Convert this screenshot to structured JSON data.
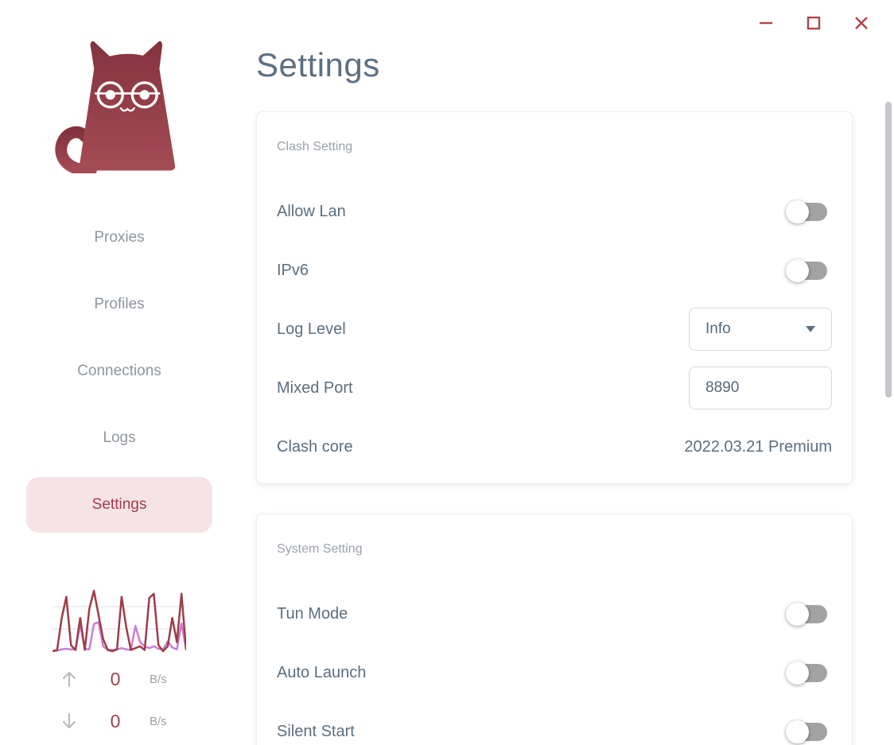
{
  "window": {
    "controls": [
      {
        "name": "minimize",
        "icon": "minimize-icon"
      },
      {
        "name": "maximize",
        "icon": "maximize-icon"
      },
      {
        "name": "close",
        "icon": "close-icon"
      }
    ]
  },
  "colors": {
    "accent_red": "#a23b4e",
    "active_pill_bg": "#f5e3e6",
    "title_slate": "#5e6f80",
    "muted_gray": "#9ba1a9",
    "toggle_off_track": "#a3a3a3",
    "scrollbar": "#c3c6ca"
  },
  "sidebar": {
    "logo": "clash-cat-logo",
    "items": [
      {
        "label": "Proxies",
        "state": ""
      },
      {
        "label": "Profiles",
        "state": ""
      },
      {
        "label": "Connections",
        "state": ""
      },
      {
        "label": "Logs",
        "state": ""
      },
      {
        "label": "Settings",
        "state": "active"
      }
    ],
    "traffic": {
      "upload": {
        "icon": "arrow-up",
        "value": "0",
        "unit": "B/s"
      },
      "download": {
        "icon": "arrow-down",
        "value": "0",
        "unit": "B/s"
      }
    }
  },
  "main": {
    "title": "Settings",
    "clash_card": {
      "title": "Clash Setting",
      "allow_lan": {
        "label": "Allow Lan",
        "state": "off"
      },
      "ipv6": {
        "label": "IPv6",
        "state": "off"
      },
      "log_level": {
        "label": "Log Level",
        "value": "Info"
      },
      "mixed_port": {
        "label": "Mixed Port",
        "value": "8890"
      },
      "clash_core": {
        "label": "Clash core",
        "value": "2022.03.21 Premium"
      }
    },
    "system_card": {
      "title": "System Setting",
      "tun_mode": {
        "label": "Tun Mode",
        "state": "off"
      },
      "auto_launch": {
        "label": "Auto Launch",
        "state": "off"
      },
      "silent_start": {
        "label": "Silent Start",
        "state": "off"
      }
    }
  },
  "chart_data": {
    "type": "line",
    "title": "traffic sparkline (upload/download)",
    "ylim": [
      0,
      100
    ],
    "grid": "two horizontal gridlines",
    "legend": "none",
    "series": [
      {
        "name": "upload",
        "color": "#9e3c49",
        "values": [
          0,
          2,
          55,
          90,
          10,
          2,
          55,
          2,
          70,
          100,
          60,
          20,
          2,
          0,
          3,
          90,
          40,
          2,
          5,
          8,
          2,
          88,
          95,
          10,
          0,
          8,
          55,
          15,
          95,
          2
        ]
      },
      {
        "name": "download",
        "color": "#c77fd3",
        "values": [
          0,
          1,
          3,
          4,
          3,
          3,
          45,
          4,
          3,
          45,
          48,
          8,
          2,
          2,
          3,
          5,
          3,
          2,
          42,
          15,
          8,
          5,
          8,
          4,
          3,
          16,
          6,
          3,
          46,
          3
        ]
      }
    ]
  }
}
